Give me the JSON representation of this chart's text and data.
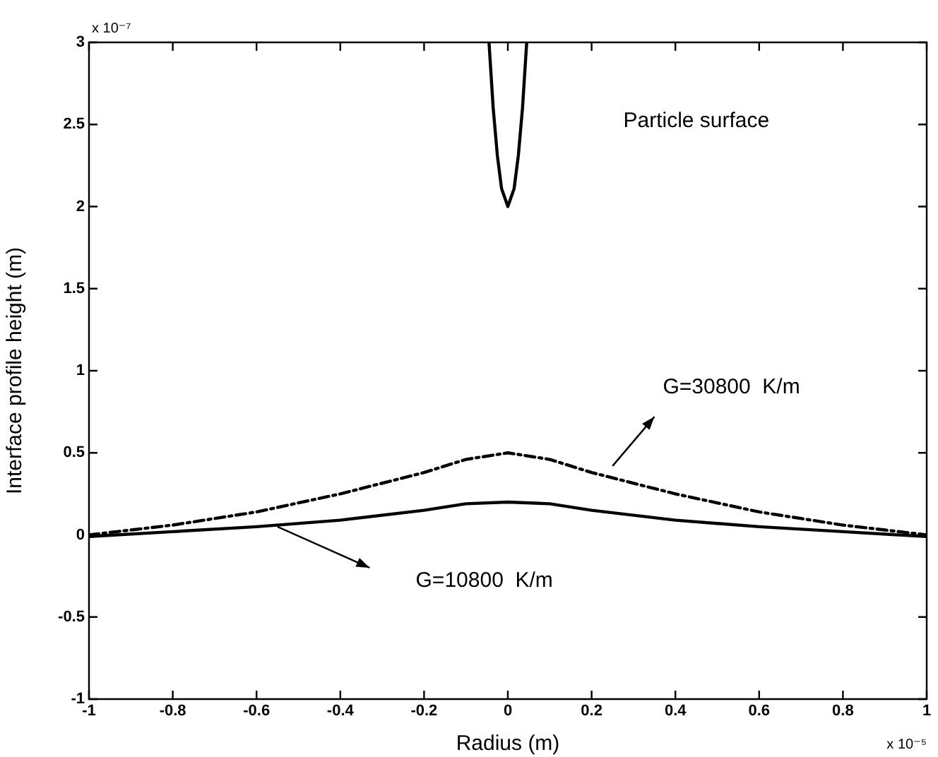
{
  "chart_data": {
    "type": "line",
    "xlabel": "Radius (m)",
    "ylabel": "Interface profile height (m)",
    "xlim": [
      -1,
      1
    ],
    "xticks": [
      -1,
      -0.8,
      -0.6,
      -0.4,
      -0.2,
      0,
      0.2,
      0.4,
      0.6,
      0.8,
      1
    ],
    "ylim": [
      -1,
      3
    ],
    "yticks": [
      -1,
      -0.5,
      0,
      0.5,
      1,
      1.5,
      2,
      2.5,
      3
    ],
    "grid": false,
    "legend": false,
    "marker": "none",
    "series": [
      {
        "color": "#000000",
        "line_style": "solid",
        "x": [
          -0.045,
          -0.035,
          -0.025,
          -0.015,
          0,
          0.015,
          0.025,
          0.035,
          0.045
        ],
        "values": [
          3,
          2.6,
          2.31,
          2.11,
          2,
          2.11,
          2.31,
          2.6,
          3
        ]
      },
      {
        "name": "G=10800  K/m",
        "color": "#000000",
        "line_style": "solid",
        "x": [
          -1,
          -0.8,
          -0.6,
          -0.4,
          -0.2,
          -0.1,
          0,
          0.1,
          0.2,
          0.4,
          0.6,
          0.8,
          1
        ],
        "values": [
          -0.01,
          0.02,
          0.05,
          0.09,
          0.15,
          0.19,
          0.2,
          0.19,
          0.15,
          0.09,
          0.05,
          0.02,
          -0.01
        ]
      },
      {
        "name": "G=30800  K/m",
        "color": "#000000",
        "line_style": "dashdot",
        "x": [
          -1,
          -0.9,
          -0.8,
          -0.6,
          -0.4,
          -0.2,
          -0.1,
          0,
          0.1,
          0.2,
          0.4,
          0.6,
          0.8,
          0.9,
          1
        ],
        "values": [
          0,
          0.03,
          0.06,
          0.14,
          0.25,
          0.38,
          0.46,
          0.5,
          0.46,
          0.38,
          0.25,
          0.14,
          0.06,
          0.03,
          0
        ]
      }
    ],
    "annotations": [
      "Particle surface",
      "x 10⁻⁷",
      "x 10⁻⁵"
    ]
  }
}
